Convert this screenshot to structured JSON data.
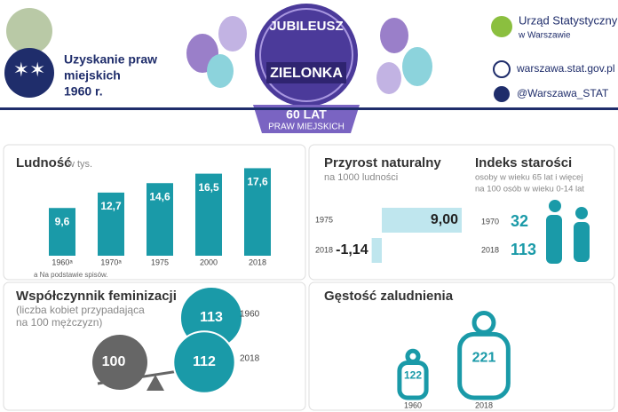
{
  "header": {
    "lines": [
      "Uzyskanie praw",
      "miejskich",
      "1960 r."
    ]
  },
  "emblem": {
    "top": "JUBILEUSZ",
    "name": "ZIELONKA",
    "years": "60 LAT",
    "subtitle": "PRAW MIEJSKICH"
  },
  "logo": {
    "lines": [
      "Urząd Statystyczny",
      "w Warszawie"
    ]
  },
  "links": [
    "warszawa.stat.gov.pl",
    "@Warszawa_STAT"
  ],
  "population": {
    "title": "Ludność",
    "unit": "w tys.",
    "categories": [
      "1960ᵃ",
      "1970ᵃ",
      "1975",
      "2000",
      "2018"
    ],
    "values": [
      9.6,
      12.7,
      14.6,
      16.5,
      17.6
    ],
    "value_labels": [
      "9,6",
      "12,7",
      "14,6",
      "16,5",
      "17,6"
    ],
    "footnote": "a Na podstawie spisów."
  },
  "growth": {
    "title": "Przyrost naturalny",
    "subtitle": "na 1000 ludności",
    "years": [
      "1975",
      "2018"
    ],
    "values": [
      9.0,
      -1.14
    ],
    "value_labels": [
      "9,00",
      "-1,14"
    ]
  },
  "aging": {
    "title": "Indeks starości",
    "subtitle": [
      "osoby w wieku 65 lat i więcej",
      "na 100 osób w wieku 0-14 lat"
    ],
    "years": [
      "1970",
      "2018"
    ],
    "values": [
      32,
      113
    ]
  },
  "feminization": {
    "title": "Współczynnik feminizacji",
    "subtitle": [
      "(liczba kobiet przypadająca",
      "na 100 mężczyzn)"
    ],
    "base": 100,
    "years": [
      "1960",
      "2018"
    ],
    "values": [
      113,
      112
    ]
  },
  "density": {
    "title": "Gęstość zaludnienia",
    "years": [
      "1960",
      "2018"
    ],
    "values": [
      122,
      221
    ]
  }
}
